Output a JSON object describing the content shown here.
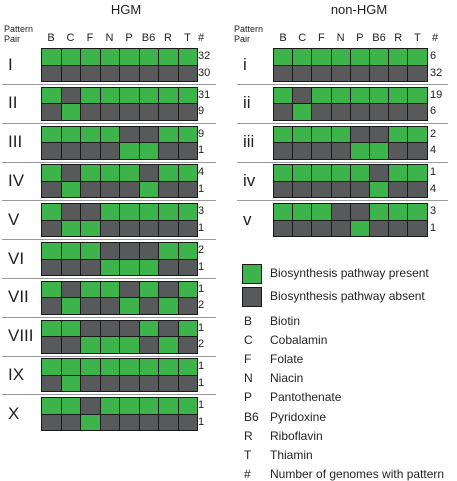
{
  "colors": {
    "present": "#3cb44b",
    "absent": "#58595b",
    "border": "#1a1a1a"
  },
  "hgm": {
    "title": "HGM",
    "pattern_pair_label": "Pattern\nPair",
    "columns": [
      "B",
      "C",
      "F",
      "N",
      "P",
      "B6",
      "R",
      "T"
    ],
    "count_header": "#",
    "pairs": [
      {
        "label": "I",
        "rows": [
          [
            1,
            1,
            1,
            1,
            1,
            1,
            1,
            1
          ],
          [
            0,
            0,
            0,
            0,
            0,
            0,
            0,
            0
          ]
        ],
        "counts": [
          "32",
          "30"
        ]
      },
      {
        "label": "II",
        "rows": [
          [
            1,
            0,
            1,
            1,
            1,
            1,
            1,
            1
          ],
          [
            0,
            1,
            0,
            0,
            0,
            0,
            0,
            0
          ]
        ],
        "counts": [
          "31",
          "9"
        ]
      },
      {
        "label": "III",
        "rows": [
          [
            1,
            1,
            1,
            1,
            0,
            0,
            1,
            1
          ],
          [
            0,
            0,
            0,
            0,
            1,
            1,
            0,
            0
          ]
        ],
        "counts": [
          "9",
          "1"
        ]
      },
      {
        "label": "IV",
        "rows": [
          [
            1,
            0,
            1,
            1,
            1,
            0,
            1,
            1
          ],
          [
            0,
            1,
            0,
            0,
            0,
            1,
            0,
            0
          ]
        ],
        "counts": [
          "4",
          "1"
        ]
      },
      {
        "label": "V",
        "rows": [
          [
            1,
            0,
            0,
            1,
            1,
            1,
            1,
            1
          ],
          [
            0,
            1,
            1,
            0,
            0,
            0,
            0,
            0
          ]
        ],
        "counts": [
          "3",
          "1"
        ]
      },
      {
        "label": "VI",
        "rows": [
          [
            1,
            1,
            1,
            0,
            0,
            0,
            1,
            1
          ],
          [
            0,
            0,
            0,
            1,
            1,
            1,
            0,
            0
          ]
        ],
        "counts": [
          "2",
          "1"
        ]
      },
      {
        "label": "VII",
        "rows": [
          [
            1,
            0,
            1,
            1,
            0,
            1,
            0,
            1
          ],
          [
            0,
            1,
            0,
            0,
            1,
            0,
            1,
            0
          ]
        ],
        "counts": [
          "1",
          "2"
        ]
      },
      {
        "label": "VIII",
        "rows": [
          [
            1,
            1,
            0,
            0,
            0,
            1,
            0,
            1
          ],
          [
            0,
            0,
            1,
            1,
            1,
            0,
            1,
            0
          ]
        ],
        "counts": [
          "1",
          "2"
        ]
      },
      {
        "label": "IX",
        "rows": [
          [
            1,
            1,
            1,
            1,
            1,
            1,
            1,
            1
          ],
          [
            0,
            1,
            0,
            0,
            0,
            0,
            0,
            0
          ]
        ],
        "counts": [
          "1",
          "1"
        ]
      },
      {
        "label": "X",
        "rows": [
          [
            1,
            1,
            0,
            1,
            1,
            1,
            1,
            1
          ],
          [
            0,
            0,
            1,
            0,
            0,
            0,
            0,
            0
          ]
        ],
        "counts": [
          "1",
          "1"
        ]
      }
    ]
  },
  "nonhgm": {
    "title": "non-HGM",
    "pattern_pair_label": "Pattern\nPair",
    "columns": [
      "B",
      "C",
      "F",
      "N",
      "P",
      "B6",
      "R",
      "T"
    ],
    "count_header": "#",
    "pairs": [
      {
        "label": "i",
        "rows": [
          [
            1,
            1,
            1,
            1,
            1,
            1,
            1,
            1
          ],
          [
            0,
            0,
            0,
            0,
            0,
            0,
            0,
            0
          ]
        ],
        "counts": [
          "6",
          "32"
        ]
      },
      {
        "label": "ii",
        "rows": [
          [
            1,
            0,
            1,
            1,
            1,
            1,
            1,
            1
          ],
          [
            0,
            1,
            0,
            0,
            0,
            0,
            0,
            0
          ]
        ],
        "counts": [
          "19",
          "6"
        ]
      },
      {
        "label": "iii",
        "rows": [
          [
            1,
            1,
            1,
            1,
            0,
            0,
            1,
            1
          ],
          [
            0,
            0,
            0,
            0,
            1,
            1,
            0,
            0
          ]
        ],
        "counts": [
          "2",
          "4"
        ]
      },
      {
        "label": "iv",
        "rows": [
          [
            1,
            1,
            1,
            1,
            1,
            0,
            1,
            1
          ],
          [
            0,
            0,
            0,
            0,
            0,
            1,
            0,
            0
          ]
        ],
        "counts": [
          "1",
          "4"
        ]
      },
      {
        "label": "v",
        "rows": [
          [
            1,
            1,
            1,
            0,
            0,
            1,
            1,
            1
          ],
          [
            0,
            0,
            0,
            0,
            1,
            0,
            0,
            0
          ]
        ],
        "counts": [
          "3",
          "1"
        ]
      }
    ]
  },
  "legend": {
    "present": "Biosynthesis pathway present",
    "absent": "Biosynthesis pathway absent",
    "abbreviations": [
      {
        "abbr": "B",
        "name": "Biotin"
      },
      {
        "abbr": "C",
        "name": "Cobalamin"
      },
      {
        "abbr": "F",
        "name": "Folate"
      },
      {
        "abbr": "N",
        "name": "Niacin"
      },
      {
        "abbr": "P",
        "name": "Pantothenate"
      },
      {
        "abbr": "B6",
        "name": "Pyridoxine"
      },
      {
        "abbr": "R",
        "name": "Riboflavin"
      },
      {
        "abbr": "T",
        "name": "Thiamin"
      },
      {
        "abbr": "#",
        "name": "Number of genomes with pattern"
      }
    ]
  }
}
